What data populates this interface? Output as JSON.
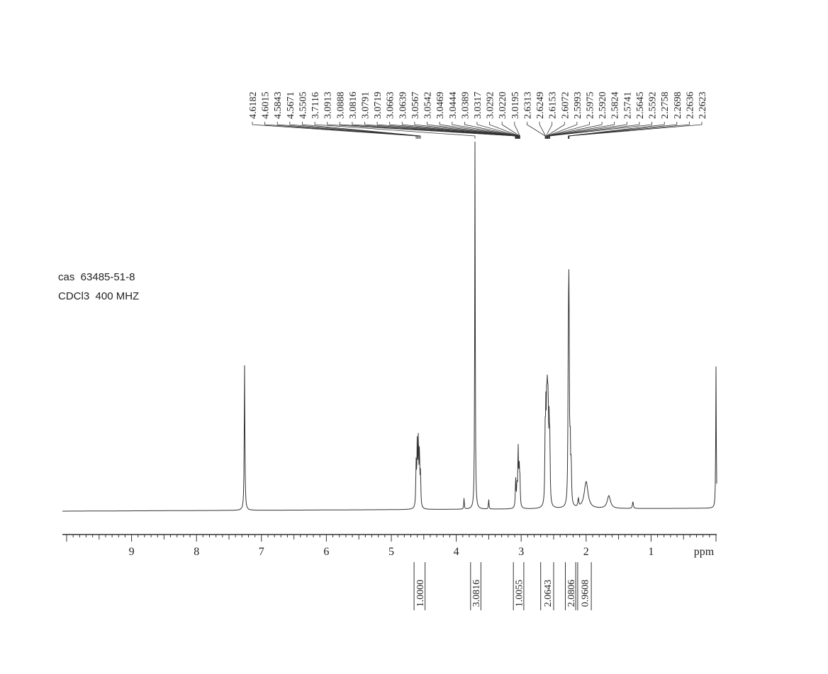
{
  "info": {
    "cas": "cas  63485-51-8",
    "solvent": "CDCl3  400 MHZ"
  },
  "chart_data": {
    "type": "line",
    "xlabel": "ppm",
    "xlim": [
      10.0,
      0.0
    ],
    "x_ticks": [
      9,
      8,
      7,
      6,
      5,
      4,
      3,
      2,
      1
    ],
    "grid": false,
    "peak_labels": [
      "4.6182",
      "4.6015",
      "4.5843",
      "4.5671",
      "4.5505",
      "3.7116",
      "3.0913",
      "3.0888",
      "3.0816",
      "3.0791",
      "3.0719",
      "3.0663",
      "3.0639",
      "3.0567",
      "3.0542",
      "3.0469",
      "3.0444",
      "3.0389",
      "3.0317",
      "3.0292",
      "3.0220",
      "3.0195",
      "2.6313",
      "2.6249",
      "2.6153",
      "2.6072",
      "2.5993",
      "2.5975",
      "2.5920",
      "2.5824",
      "2.5741",
      "2.5645",
      "2.5592",
      "2.2758",
      "2.2698",
      "2.2636",
      "2.2623"
    ],
    "integrals": [
      {
        "label": "1.0000",
        "from": 4.65,
        "to": 4.48
      },
      {
        "label": "3.0816",
        "from": 3.78,
        "to": 3.62
      },
      {
        "label": "1.0055",
        "from": 3.12,
        "to": 2.96
      },
      {
        "label": "2.0643",
        "from": 2.7,
        "to": 2.5
      },
      {
        "label": "2.0806",
        "from": 2.32,
        "to": 2.16
      },
      {
        "label": "0.9608",
        "from": 2.13,
        "to": 1.92
      }
    ],
    "spectrum_peaks": [
      {
        "ppm": 7.26,
        "height": 205,
        "width": 0.006
      },
      {
        "ppm": 4.618,
        "height": 60,
        "width": 0.006
      },
      {
        "ppm": 4.601,
        "height": 85,
        "width": 0.006
      },
      {
        "ppm": 4.584,
        "height": 90,
        "width": 0.006
      },
      {
        "ppm": 4.567,
        "height": 75,
        "width": 0.006
      },
      {
        "ppm": 4.551,
        "height": 45,
        "width": 0.006
      },
      {
        "ppm": 3.88,
        "height": 16,
        "width": 0.005
      },
      {
        "ppm": 3.7116,
        "height": 520,
        "width": 0.005
      },
      {
        "ppm": 3.5,
        "height": 14,
        "width": 0.005
      },
      {
        "ppm": 3.085,
        "height": 40,
        "width": 0.006
      },
      {
        "ppm": 3.065,
        "height": 30,
        "width": 0.006
      },
      {
        "ppm": 3.047,
        "height": 82,
        "width": 0.006
      },
      {
        "ppm": 3.031,
        "height": 50,
        "width": 0.006
      },
      {
        "ppm": 3.02,
        "height": 38,
        "width": 0.006
      },
      {
        "ppm": 2.631,
        "height": 90,
        "width": 0.006
      },
      {
        "ppm": 2.62,
        "height": 110,
        "width": 0.006
      },
      {
        "ppm": 2.607,
        "height": 125,
        "width": 0.006
      },
      {
        "ppm": 2.596,
        "height": 128,
        "width": 0.006
      },
      {
        "ppm": 2.585,
        "height": 120,
        "width": 0.006
      },
      {
        "ppm": 2.57,
        "height": 100,
        "width": 0.006
      },
      {
        "ppm": 2.559,
        "height": 80,
        "width": 0.006
      },
      {
        "ppm": 2.2758,
        "height": 120,
        "width": 0.006
      },
      {
        "ppm": 2.2698,
        "height": 140,
        "width": 0.006
      },
      {
        "ppm": 2.2636,
        "height": 132,
        "width": 0.006
      },
      {
        "ppm": 2.2623,
        "height": 110,
        "width": 0.006
      },
      {
        "ppm": 2.245,
        "height": 80,
        "width": 0.006
      },
      {
        "ppm": 2.23,
        "height": 55,
        "width": 0.006
      },
      {
        "ppm": 2.12,
        "height": 12,
        "width": 0.008
      },
      {
        "ppm": 2.0,
        "height": 38,
        "width": 0.035
      },
      {
        "ppm": 1.65,
        "height": 18,
        "width": 0.03
      },
      {
        "ppm": 1.28,
        "height": 10,
        "width": 0.008
      },
      {
        "ppm": 0.0,
        "height": 200,
        "width": 0.005
      }
    ]
  }
}
